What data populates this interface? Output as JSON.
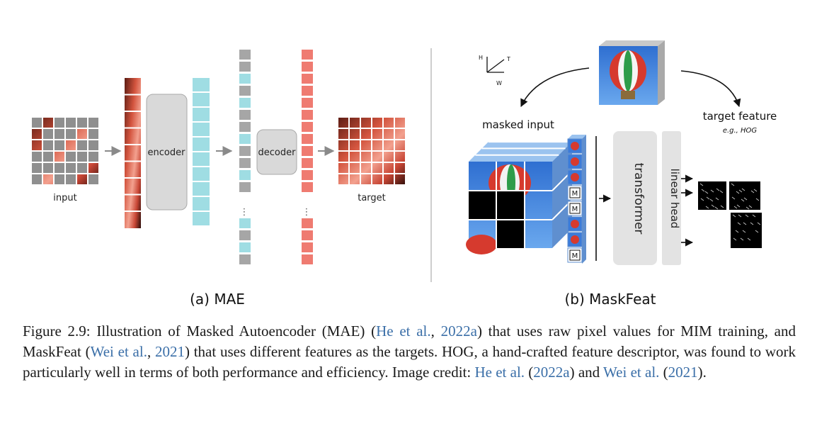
{
  "mae": {
    "input_label": "input",
    "encoder_label": "encoder",
    "decoder_label": "decoder",
    "target_label": "target",
    "ellipsis": "⋮",
    "subcaption": "(a) MAE"
  },
  "maskfeat": {
    "axis_h": "H",
    "axis_t": "T",
    "axis_w": "W",
    "masked_input_label": "masked input",
    "target_feature_label": "target feature",
    "target_feature_example": "e.g., HOG",
    "mask_token": "M",
    "transformer_label": "transformer",
    "linear_head_label": "linear head",
    "subcaption": "(b) MaskFeat"
  },
  "caption": {
    "lead": "Figure 2.9: Illustration of Masked Autoencoder (MAE) (",
    "cite1_author": "He et al.",
    "sep1": ", ",
    "cite1_year": "2022a",
    "mid1": ") that uses raw pixel values for MIM training, and MaskFeat (",
    "cite2_author": "Wei et al.",
    "sep2": ", ",
    "cite2_year": "2021",
    "mid2": ") that uses different features as the targets. HOG, a hand-crafted feature descriptor, was found to work particularly well in terms of both performance and efficiency. Image credit: ",
    "cite3_author": "He et al.",
    "open3": " (",
    "cite3_year": "2022a",
    "close3": ") and ",
    "cite4_author": "Wei et al.",
    "open4": " (",
    "cite4_year": "2021",
    "close4": ")."
  },
  "colors": {
    "encoded_token": "#9fdde3",
    "mask_token": "#a6a6a6",
    "decoded_token": "#ef7b71",
    "block_fill": "#d9d9d9",
    "caption_link": "#3b6fa8"
  }
}
